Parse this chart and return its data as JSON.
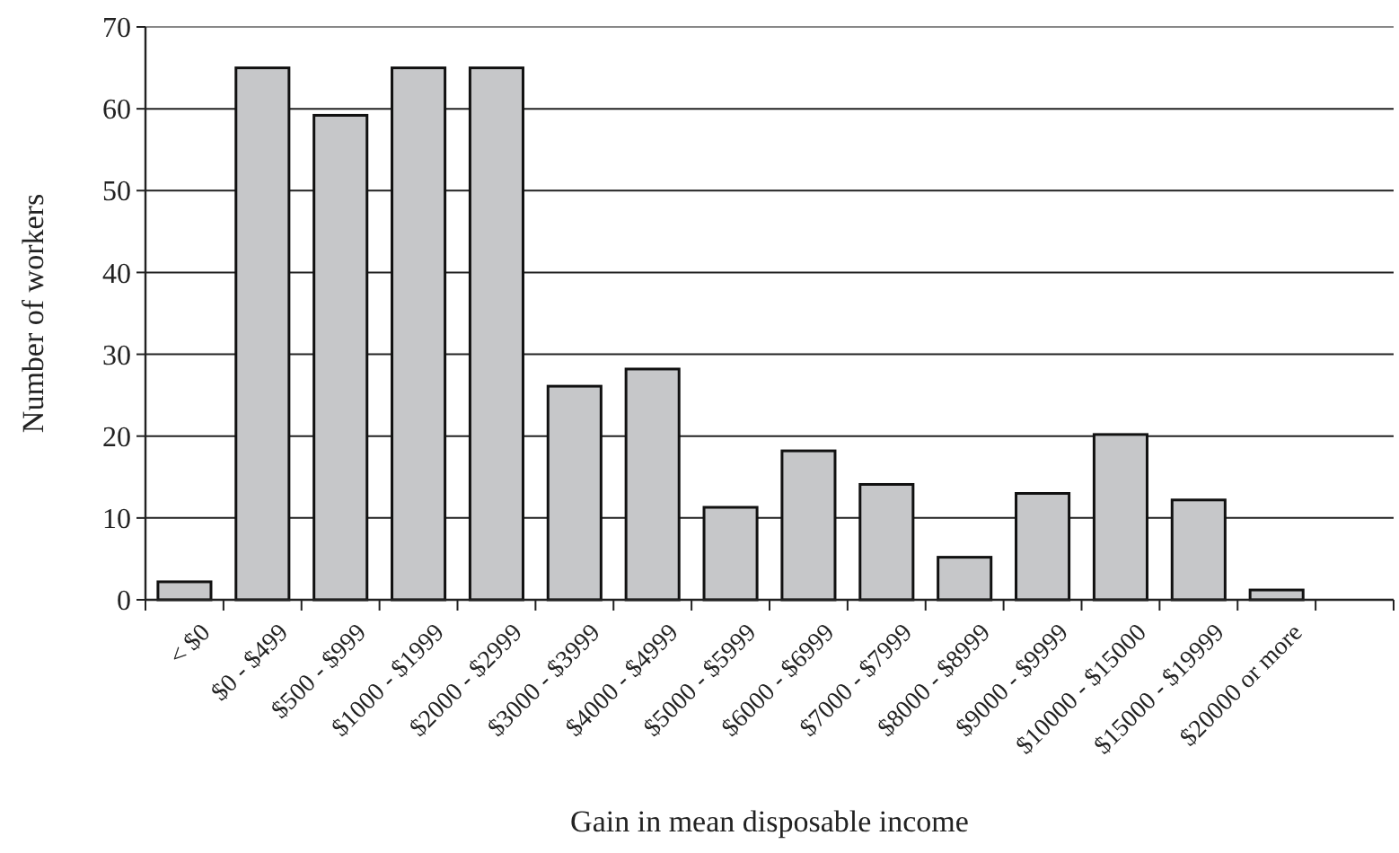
{
  "chart_data": {
    "type": "bar",
    "xlabel": "Gain in mean disposable income",
    "ylabel": "Number of workers",
    "categories": [
      "< $0",
      "$0 - $499",
      "$500 - $999",
      "$1000 - $1999",
      "$2000 - $2999",
      "$3000 - $3999",
      "$4000 - $4999",
      "$5000 - $5999",
      "$6000 - $6999",
      "$7000 - $7999",
      "$8000 - $8999",
      "$9000 - $9999",
      "$10000 - $15000",
      "$15000 - $19999",
      "$20000 or more",
      null
    ],
    "values": [
      2.2,
      65,
      59.2,
      65,
      65,
      26.1,
      28.2,
      11.3,
      18.2,
      14.1,
      5.2,
      13,
      20.2,
      12.2,
      1.2,
      null
    ],
    "color": "#c6c7c9",
    "ylim": [
      0,
      70
    ],
    "yticks": [
      0,
      10,
      20,
      30,
      40,
      50,
      60,
      70
    ],
    "grid": "y"
  }
}
